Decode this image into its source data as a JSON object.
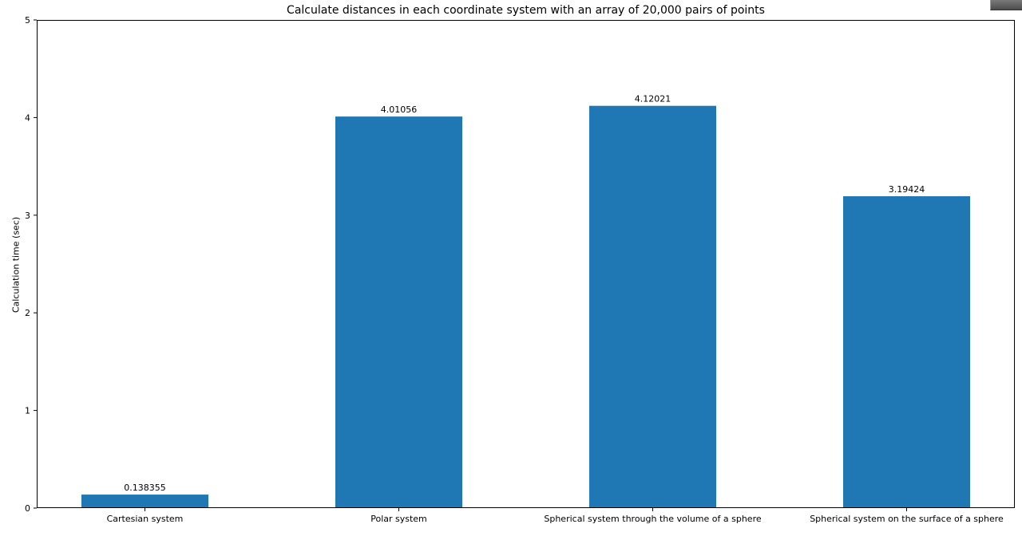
{
  "chart_data": {
    "type": "bar",
    "title": "Calculate distances in each coordinate system with an array of 20,000 pairs of points",
    "xlabel": "",
    "ylabel": "Calculation time (sec)",
    "categories": [
      "Cartesian system",
      "Polar system",
      "Spherical system through the volume of a sphere",
      "Spherical system on the surface of a sphere"
    ],
    "values": [
      0.138355,
      4.01056,
      4.12021,
      3.19424
    ],
    "data_labels": [
      "0.138355",
      "4.01056",
      "4.12021",
      "3.19424"
    ],
    "ylim": [
      0,
      5
    ],
    "yticks": [
      0,
      1,
      2,
      3,
      4,
      5
    ],
    "grid": false,
    "bar_color": "#1f77b4"
  }
}
